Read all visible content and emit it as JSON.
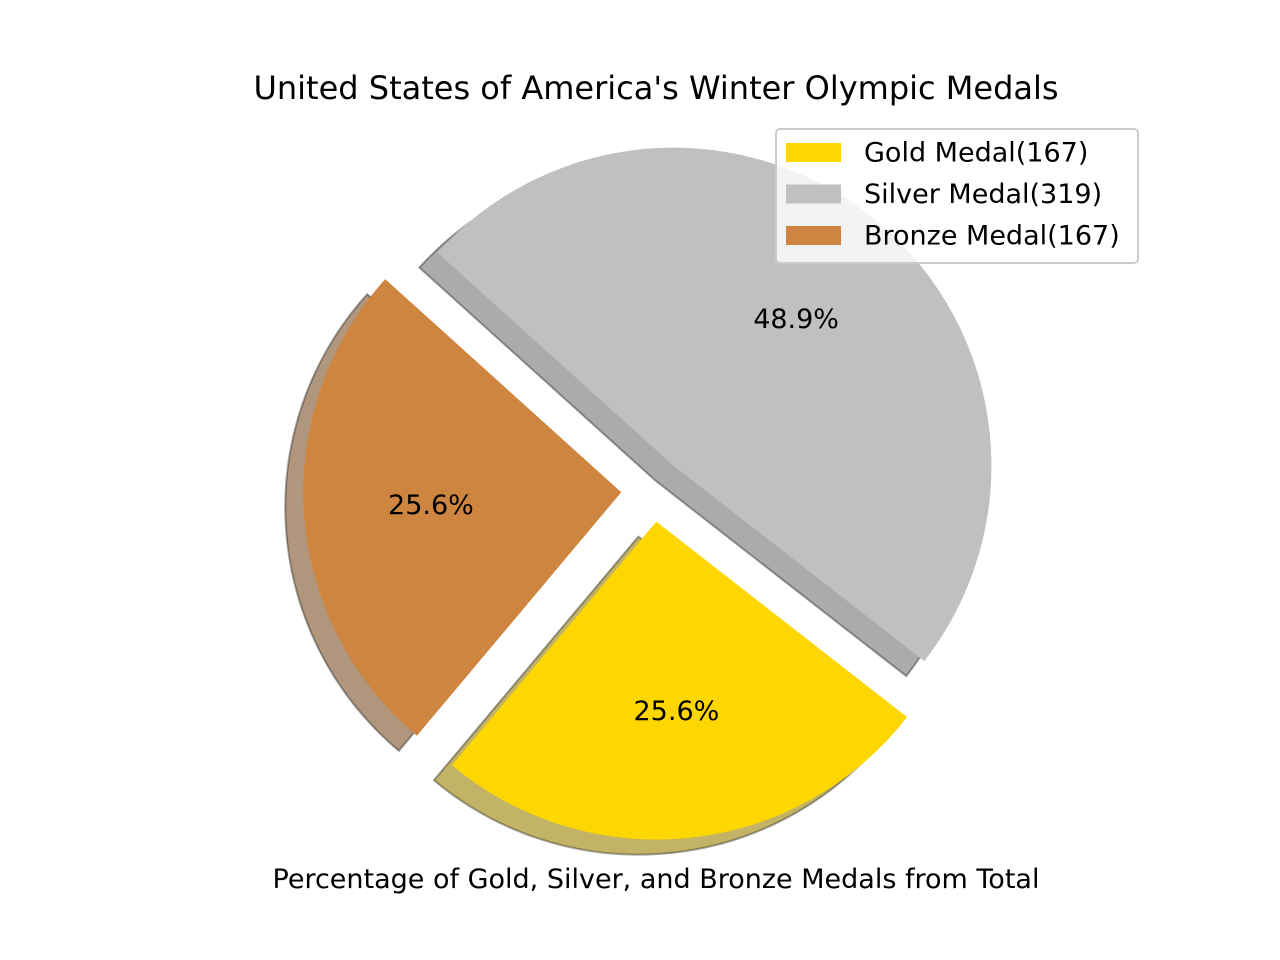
{
  "chart_data": {
    "type": "pie",
    "title": "United States of America's Winter Olympic Medals",
    "xlabel": "Percentage of Gold, Silver, and Bronze Medals from Total",
    "ylabel": "",
    "slices": [
      {
        "label": "Gold Medal(167)",
        "value": 167,
        "percent_label": "25.6%",
        "color": "#FFD700",
        "exploded": true
      },
      {
        "label": "Silver Medal(319)",
        "value": 319,
        "percent_label": "48.9%",
        "color": "#C0C0C0",
        "exploded": true
      },
      {
        "label": "Bronze Medal(167)",
        "value": 167,
        "percent_label": "25.6%",
        "color": "#CD853F",
        "exploded": true
      }
    ],
    "shadow": true,
    "legend": "top-right"
  }
}
